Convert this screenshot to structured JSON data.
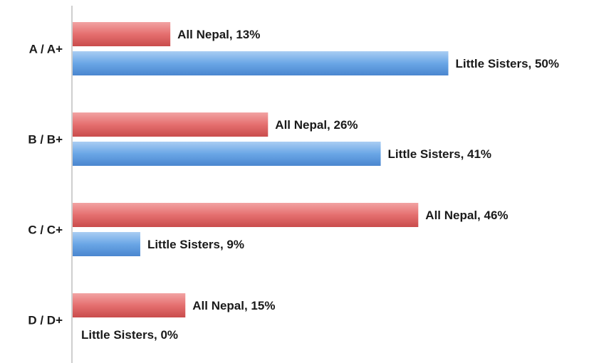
{
  "chart_data": {
    "type": "bar",
    "orientation": "horizontal",
    "categories": [
      "A / A+",
      "B / B+",
      "C / C+",
      "D / D+"
    ],
    "series": [
      {
        "name": "All Nepal",
        "values": [
          13,
          26,
          46,
          15
        ],
        "color": "#e06666"
      },
      {
        "name": "Little Sisters",
        "values": [
          50,
          41,
          9,
          0
        ],
        "color": "#5b9bd5"
      }
    ],
    "data_labels": [
      [
        "All Nepal, 13%",
        "All Nepal, 26%",
        "All Nepal, 46%",
        "All Nepal, 15%"
      ],
      [
        "Little Sisters, 50%",
        "Little Sisters, 41%",
        "Little Sisters, 9%",
        "Little Sisters, 0%"
      ]
    ],
    "unit": "%",
    "xlim": [
      0,
      100
    ],
    "title": "",
    "xlabel": "",
    "ylabel": "",
    "grid": false,
    "legend": "none"
  }
}
